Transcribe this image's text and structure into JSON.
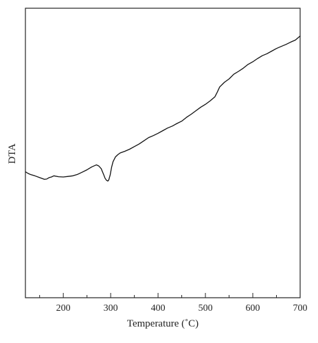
{
  "chart_data": {
    "type": "line",
    "title": "",
    "xlabel": "Temperature (˚C)",
    "ylabel": "DTA",
    "xlim": [
      120,
      700
    ],
    "ylim": [
      0,
      100
    ],
    "x_ticks": [
      200,
      300,
      400,
      500,
      600,
      700
    ],
    "x_minor_ticks": [
      150,
      250,
      350,
      450,
      550,
      650
    ],
    "y_ticks_shown": false,
    "grid": false,
    "series": [
      {
        "name": "",
        "color": "#111111",
        "x": [
          120,
          125,
          130,
          140,
          150,
          160,
          165,
          170,
          175,
          180,
          190,
          200,
          210,
          220,
          230,
          240,
          250,
          260,
          270,
          275,
          280,
          285,
          288,
          291,
          294,
          296,
          299,
          302,
          305,
          310,
          315,
          320,
          330,
          340,
          350,
          360,
          370,
          380,
          390,
          400,
          410,
          420,
          430,
          440,
          450,
          460,
          470,
          480,
          490,
          500,
          510,
          520,
          525,
          530,
          540,
          550,
          560,
          570,
          580,
          590,
          600,
          610,
          620,
          630,
          640,
          650,
          660,
          670,
          680,
          690,
          700
        ],
        "y": [
          43.5,
          43.0,
          42.6,
          42.1,
          41.5,
          40.9,
          41.0,
          41.5,
          41.7,
          42.1,
          41.8,
          41.7,
          41.9,
          42.1,
          42.6,
          43.4,
          44.2,
          45.2,
          45.9,
          45.5,
          44.6,
          42.6,
          41.3,
          40.6,
          40.3,
          40.7,
          42.4,
          45.1,
          47.0,
          48.6,
          49.4,
          50.0,
          50.6,
          51.3,
          52.2,
          53.1,
          54.2,
          55.3,
          56.0,
          56.8,
          57.7,
          58.6,
          59.3,
          60.2,
          61.0,
          62.3,
          63.4,
          64.6,
          65.8,
          66.8,
          68.0,
          69.4,
          71.0,
          72.8,
          74.4,
          75.6,
          77.2,
          78.2,
          79.3,
          80.6,
          81.5,
          82.6,
          83.6,
          84.3,
          85.2,
          86.1,
          86.8,
          87.5,
          88.3,
          89.0,
          90.4
        ]
      }
    ]
  }
}
